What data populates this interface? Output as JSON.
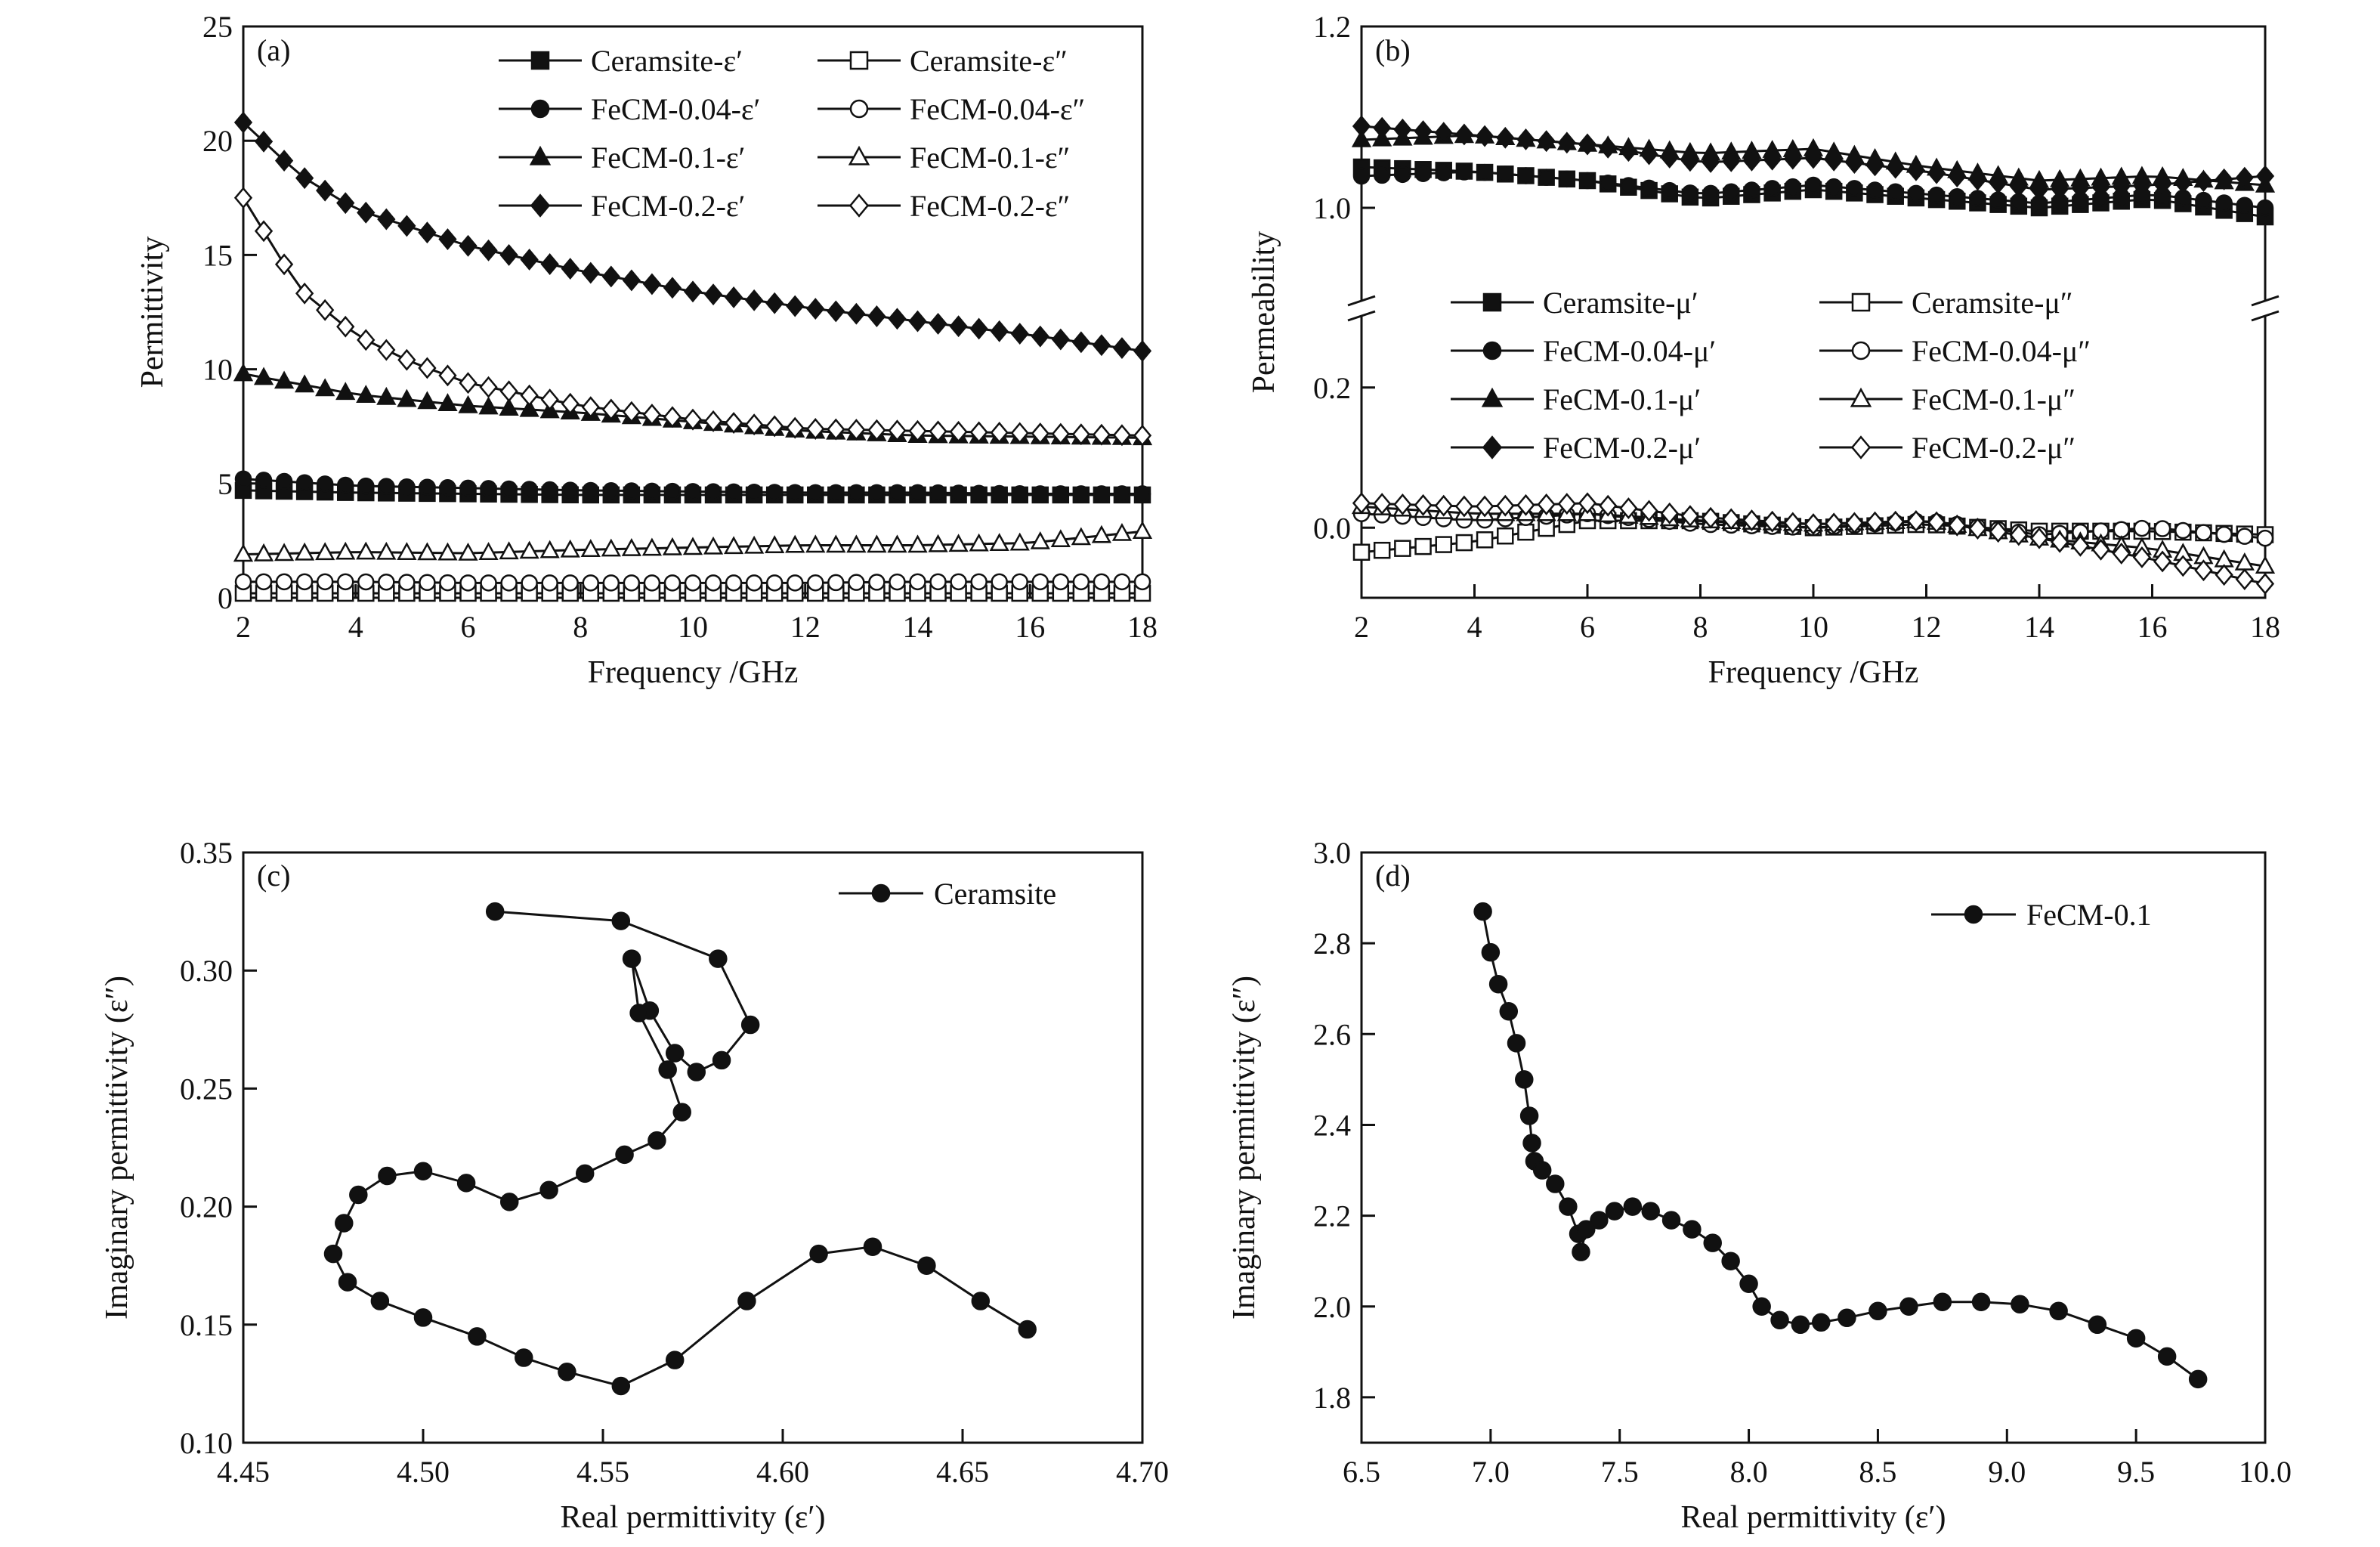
{
  "chart_data": [
    {
      "panel": "(a)",
      "type": "line",
      "xlabel": "Frequency /GHz",
      "ylabel": "Permittivity",
      "xlim": [
        2,
        18
      ],
      "ylim": [
        0,
        25
      ],
      "xticks": [
        "2",
        "4",
        "6",
        "8",
        "10",
        "12",
        "14",
        "16",
        "18"
      ],
      "yticks": [
        "0",
        "5",
        "10",
        "15",
        "20",
        "25"
      ],
      "legend": "top-right, two columns",
      "series": [
        {
          "name": "Ceramsite-ε′",
          "marker": "square-filled",
          "x": [
            2,
            4,
            6,
            8,
            10,
            12,
            14,
            16,
            18
          ],
          "values": [
            4.7,
            4.6,
            4.55,
            4.5,
            4.5,
            4.5,
            4.5,
            4.5,
            4.5
          ]
        },
        {
          "name": "Ceramsite-ε″",
          "marker": "square-open",
          "x": [
            2,
            4,
            6,
            8,
            10,
            12,
            14,
            16,
            18
          ],
          "values": [
            0.2,
            0.2,
            0.2,
            0.2,
            0.2,
            0.2,
            0.2,
            0.2,
            0.2
          ]
        },
        {
          "name": "FeCM-0.04-ε′",
          "marker": "circle-filled",
          "x": [
            2,
            4,
            6,
            8,
            10,
            12,
            14,
            16,
            18
          ],
          "values": [
            5.2,
            4.9,
            4.8,
            4.7,
            4.65,
            4.6,
            4.6,
            4.55,
            4.55
          ]
        },
        {
          "name": "FeCM-0.04-ε″",
          "marker": "circle-open",
          "x": [
            2,
            4,
            6,
            8,
            10,
            12,
            14,
            16,
            18
          ],
          "values": [
            0.7,
            0.7,
            0.65,
            0.65,
            0.65,
            0.65,
            0.7,
            0.7,
            0.7
          ]
        },
        {
          "name": "FeCM-0.1-ε′",
          "marker": "triangle-filled",
          "x": [
            2,
            4,
            6,
            8,
            10,
            12,
            14,
            16,
            18
          ],
          "values": [
            9.8,
            8.9,
            8.4,
            8.1,
            7.7,
            7.3,
            7.1,
            7.05,
            7.0
          ]
        },
        {
          "name": "FeCM-0.1-ε″",
          "marker": "triangle-open",
          "x": [
            2,
            4,
            6,
            8,
            10,
            12,
            14,
            16,
            18
          ],
          "values": [
            1.9,
            2.0,
            1.95,
            2.1,
            2.2,
            2.3,
            2.3,
            2.4,
            2.9
          ]
        },
        {
          "name": "FeCM-0.2-ε′",
          "marker": "diamond-filled",
          "x": [
            2,
            3,
            4,
            6,
            8,
            10,
            12,
            14,
            16,
            18
          ],
          "values": [
            20.8,
            18.5,
            17.0,
            15.4,
            14.3,
            13.4,
            12.7,
            12.1,
            11.5,
            10.8
          ]
        },
        {
          "name": "FeCM-0.2-ε″",
          "marker": "diamond-open",
          "x": [
            2,
            3,
            4,
            5,
            6,
            8,
            10,
            12,
            14,
            16,
            18
          ],
          "values": [
            17.5,
            13.5,
            11.5,
            10.3,
            9.4,
            8.4,
            7.8,
            7.4,
            7.3,
            7.2,
            7.1
          ]
        }
      ]
    },
    {
      "panel": "(b)",
      "type": "line",
      "xlabel": "Frequency /GHz",
      "ylabel": "Permeability",
      "xlim": [
        2,
        18
      ],
      "broken_y_axis": true,
      "ylim_lower": [
        -0.1,
        0.3
      ],
      "ylim_upper": [
        0.9,
        1.2
      ],
      "xticks": [
        "2",
        "4",
        "6",
        "8",
        "10",
        "12",
        "14",
        "16",
        "18"
      ],
      "yticks": [
        "0.0",
        "0.2",
        "1.0",
        "1.2"
      ],
      "legend": "center, two columns",
      "series": [
        {
          "name": "Ceramsite-μ′",
          "marker": "square-filled",
          "x": [
            2,
            4,
            6,
            8,
            10,
            12,
            14,
            16,
            18
          ],
          "values": [
            1.045,
            1.04,
            1.03,
            1.01,
            1.02,
            1.01,
            1.0,
            1.01,
            0.99
          ]
        },
        {
          "name": "Ceramsite-μ″",
          "marker": "square-open",
          "x": [
            2,
            4,
            6,
            8,
            10,
            12,
            14,
            16,
            18
          ],
          "values": [
            -0.035,
            -0.02,
            0.01,
            0.01,
            0.0,
            0.005,
            -0.005,
            -0.005,
            -0.01
          ]
        },
        {
          "name": "FeCM-0.04-μ′",
          "marker": "circle-filled",
          "x": [
            2,
            4,
            6,
            8,
            10,
            12,
            14,
            16,
            18
          ],
          "values": [
            1.035,
            1.04,
            1.03,
            1.015,
            1.025,
            1.015,
            1.005,
            1.015,
            1.0
          ]
        },
        {
          "name": "FeCM-0.04-μ″",
          "marker": "circle-open",
          "x": [
            2,
            4,
            6,
            8,
            10,
            12,
            14,
            16,
            18
          ],
          "values": [
            0.02,
            0.01,
            0.02,
            0.005,
            0.0,
            0.01,
            -0.01,
            0.0,
            -0.015
          ]
        },
        {
          "name": "FeCM-0.1-μ′",
          "marker": "triangle-filled",
          "x": [
            2,
            4,
            6,
            8,
            10,
            12,
            14,
            16,
            18
          ],
          "values": [
            1.075,
            1.08,
            1.07,
            1.06,
            1.065,
            1.045,
            1.03,
            1.035,
            1.025
          ]
        },
        {
          "name": "FeCM-0.1-μ″",
          "marker": "triangle-open",
          "x": [
            2,
            4,
            6,
            8,
            10,
            12,
            14,
            16,
            18
          ],
          "values": [
            0.03,
            0.02,
            0.02,
            0.01,
            0.005,
            0.01,
            -0.015,
            -0.03,
            -0.055
          ]
        },
        {
          "name": "FeCM-0.2-μ′",
          "marker": "diamond-filled",
          "x": [
            2,
            4,
            6,
            8,
            10,
            12,
            14,
            16,
            18
          ],
          "values": [
            1.09,
            1.08,
            1.07,
            1.05,
            1.055,
            1.04,
            1.02,
            1.025,
            1.035
          ]
        },
        {
          "name": "FeCM-0.2-μ″",
          "marker": "diamond-open",
          "x": [
            2,
            4,
            6,
            8,
            10,
            12,
            14,
            16,
            18
          ],
          "values": [
            0.035,
            0.03,
            0.035,
            0.015,
            0.005,
            0.01,
            -0.015,
            -0.045,
            -0.08
          ]
        }
      ]
    },
    {
      "panel": "(c)",
      "type": "scatter",
      "xlabel": "Real permittivity (ε′)",
      "ylabel": "Imaginary permittivity (ε″)",
      "xlim": [
        4.45,
        4.7
      ],
      "ylim": [
        0.1,
        0.35
      ],
      "xticks": [
        "4.45",
        "4.50",
        "4.55",
        "4.60",
        "4.65",
        "4.70"
      ],
      "yticks": [
        "0.10",
        "0.15",
        "0.20",
        "0.25",
        "0.30",
        "0.35"
      ],
      "legend": "top-right",
      "series": [
        {
          "name": "Ceramsite",
          "connected": true,
          "x": [
            4.52,
            4.555,
            4.582,
            4.591,
            4.583,
            4.576,
            4.57,
            4.563,
            4.558,
            4.56,
            4.568,
            4.572,
            4.565,
            4.556,
            4.545,
            4.535,
            4.524,
            4.512,
            4.5,
            4.49,
            4.482,
            4.478,
            4.475,
            4.479,
            4.488,
            4.5,
            4.515,
            4.528,
            4.54,
            4.555,
            4.57,
            4.59,
            4.61,
            4.625,
            4.64,
            4.655,
            4.668
          ],
          "y": [
            0.325,
            0.321,
            0.305,
            0.277,
            0.262,
            0.257,
            0.265,
            0.283,
            0.305,
            0.282,
            0.258,
            0.24,
            0.228,
            0.222,
            0.214,
            0.207,
            0.202,
            0.21,
            0.215,
            0.213,
            0.205,
            0.193,
            0.18,
            0.168,
            0.16,
            0.153,
            0.145,
            0.136,
            0.13,
            0.124,
            0.135,
            0.16,
            0.18,
            0.183,
            0.175,
            0.16,
            0.148
          ]
        }
      ]
    },
    {
      "panel": "(d)",
      "type": "scatter",
      "xlabel": "Real permittivity (ε′)",
      "ylabel": "Imaginary permittivity (ε″)",
      "xlim": [
        6.5,
        10.0
      ],
      "ylim": [
        1.7,
        3.0
      ],
      "xticks": [
        "6.5",
        "7.0",
        "7.5",
        "8.0",
        "8.5",
        "9.0",
        "9.5",
        "10.0"
      ],
      "yticks": [
        "1.8",
        "2.0",
        "2.2",
        "2.4",
        "2.6",
        "2.8",
        "3.0"
      ],
      "legend": "top-right",
      "series": [
        {
          "name": "FeCM-0.1",
          "connected": true,
          "x": [
            6.97,
            7.0,
            7.03,
            7.07,
            7.1,
            7.13,
            7.15,
            7.16,
            7.17,
            7.2,
            7.25,
            7.3,
            7.34,
            7.35,
            7.37,
            7.42,
            7.48,
            7.55,
            7.62,
            7.7,
            7.78,
            7.86,
            7.93,
            8.0,
            8.05,
            8.12,
            8.2,
            8.28,
            8.38,
            8.5,
            8.62,
            8.75,
            8.9,
            9.05,
            9.2,
            9.35,
            9.5,
            9.62,
            9.74
          ],
          "y": [
            2.87,
            2.78,
            2.71,
            2.65,
            2.58,
            2.5,
            2.42,
            2.36,
            2.32,
            2.3,
            2.27,
            2.22,
            2.16,
            2.12,
            2.17,
            2.19,
            2.21,
            2.22,
            2.21,
            2.19,
            2.17,
            2.14,
            2.1,
            2.05,
            2.0,
            1.97,
            1.96,
            1.965,
            1.975,
            1.99,
            2.0,
            2.01,
            2.01,
            2.005,
            1.99,
            1.96,
            1.93,
            1.89,
            1.84
          ]
        }
      ]
    }
  ]
}
